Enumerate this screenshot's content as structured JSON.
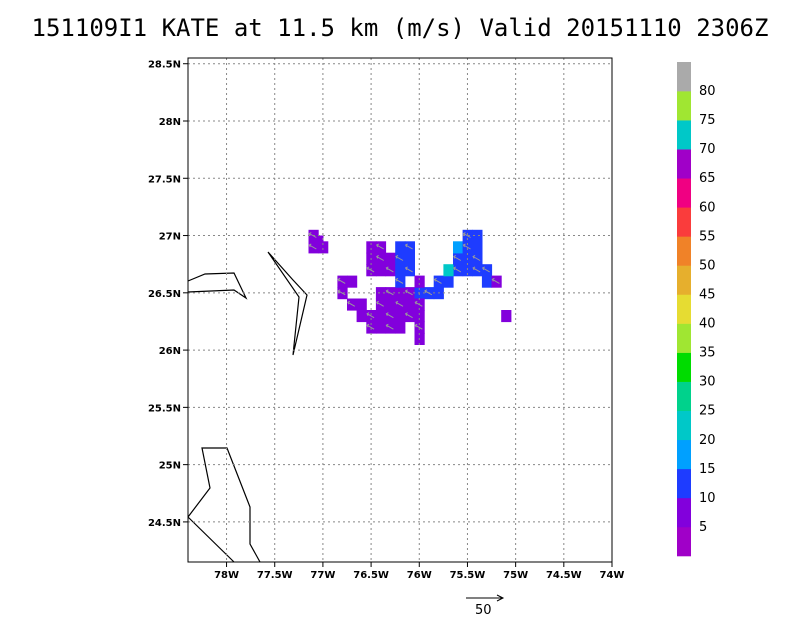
{
  "title": "151109I1 KATE at 11.5 km (m/s) Valid 20151110 2306Z",
  "chart_data": {
    "type": "heatmap",
    "x_unit": "deg lon (negative = W)",
    "y_unit": "deg lat",
    "xlim": [
      -78.4,
      -74.0
    ],
    "ylim": [
      24.15,
      28.55
    ],
    "grid": true,
    "x_ticks": [
      {
        "value": -78.0,
        "label": "78W"
      },
      {
        "value": -77.5,
        "label": "77.5W"
      },
      {
        "value": -77.0,
        "label": "77W"
      },
      {
        "value": -76.5,
        "label": "76.5W"
      },
      {
        "value": -76.0,
        "label": "76W"
      },
      {
        "value": -75.5,
        "label": "75.5W"
      },
      {
        "value": -75.0,
        "label": "75W"
      },
      {
        "value": -74.5,
        "label": "74.5W"
      },
      {
        "value": -74.0,
        "label": "74W"
      }
    ],
    "y_ticks": [
      {
        "value": 24.5,
        "label": "24.5N"
      },
      {
        "value": 25.0,
        "label": "25N"
      },
      {
        "value": 25.5,
        "label": "25.5N"
      },
      {
        "value": 26.0,
        "label": "26N"
      },
      {
        "value": 26.5,
        "label": "26.5N"
      },
      {
        "value": 27.0,
        "label": "27N"
      },
      {
        "value": 27.5,
        "label": "27.5N"
      },
      {
        "value": 28.0,
        "label": "28N"
      },
      {
        "value": 28.5,
        "label": "28.5N"
      }
    ],
    "colorbar": {
      "levels": [
        {
          "label": "",
          "color": "#a000c8"
        },
        {
          "label": "5",
          "color": "#8200dc"
        },
        {
          "label": "10",
          "color": "#1e3cff"
        },
        {
          "label": "15",
          "color": "#00a0ff"
        },
        {
          "label": "20",
          "color": "#00c8c8"
        },
        {
          "label": "25",
          "color": "#00d28c"
        },
        {
          "label": "30",
          "color": "#00dc00"
        },
        {
          "label": "35",
          "color": "#a0e632"
        },
        {
          "label": "40",
          "color": "#e6dc32"
        },
        {
          "label": "45",
          "color": "#e6af2d"
        },
        {
          "label": "50",
          "color": "#f08228"
        },
        {
          "label": "55",
          "color": "#fa3c3c"
        },
        {
          "label": "60",
          "color": "#f00082"
        },
        {
          "label": "65",
          "color": "#a000c8"
        },
        {
          "label": "70",
          "color": "#00c8c8"
        },
        {
          "label": "75",
          "color": "#a0e632"
        },
        {
          "label": "80",
          "color": "#aaaaaa"
        }
      ]
    },
    "cell_size_deg": 0.1,
    "cells": [
      {
        "lon": -77.1,
        "lat": 27.0,
        "v": 5
      },
      {
        "lon": -77.05,
        "lat": 26.95,
        "v": 5
      },
      {
        "lon": -77.1,
        "lat": 26.9,
        "v": 5
      },
      {
        "lon": -77.0,
        "lat": 26.9,
        "v": 5
      },
      {
        "lon": -76.8,
        "lat": 26.6,
        "v": 5
      },
      {
        "lon": -76.7,
        "lat": 26.6,
        "v": 5
      },
      {
        "lon": -76.8,
        "lat": 26.5,
        "v": 5
      },
      {
        "lon": -76.5,
        "lat": 26.9,
        "v": 5
      },
      {
        "lon": -76.4,
        "lat": 26.9,
        "v": 5
      },
      {
        "lon": -76.2,
        "lat": 26.9,
        "v": 10
      },
      {
        "lon": -76.1,
        "lat": 26.9,
        "v": 10
      },
      {
        "lon": -76.5,
        "lat": 26.8,
        "v": 5
      },
      {
        "lon": -76.4,
        "lat": 26.8,
        "v": 5
      },
      {
        "lon": -76.3,
        "lat": 26.8,
        "v": 5
      },
      {
        "lon": -76.2,
        "lat": 26.8,
        "v": 10
      },
      {
        "lon": -76.1,
        "lat": 26.8,
        "v": 10
      },
      {
        "lon": -76.5,
        "lat": 26.7,
        "v": 5
      },
      {
        "lon": -76.4,
        "lat": 26.7,
        "v": 5
      },
      {
        "lon": -76.3,
        "lat": 26.7,
        "v": 5
      },
      {
        "lon": -76.2,
        "lat": 26.7,
        "v": 10
      },
      {
        "lon": -76.1,
        "lat": 26.7,
        "v": 10
      },
      {
        "lon": -76.4,
        "lat": 26.5,
        "v": 5
      },
      {
        "lon": -76.3,
        "lat": 26.5,
        "v": 5
      },
      {
        "lon": -76.2,
        "lat": 26.5,
        "v": 5
      },
      {
        "lon": -76.1,
        "lat": 26.5,
        "v": 5
      },
      {
        "lon": -76.0,
        "lat": 26.5,
        "v": 10
      },
      {
        "lon": -75.9,
        "lat": 26.5,
        "v": 10
      },
      {
        "lon": -75.8,
        "lat": 26.5,
        "v": 10
      },
      {
        "lon": -76.2,
        "lat": 26.6,
        "v": 10
      },
      {
        "lon": -76.0,
        "lat": 26.6,
        "v": 5
      },
      {
        "lon": -75.8,
        "lat": 26.6,
        "v": 10
      },
      {
        "lon": -75.7,
        "lat": 26.6,
        "v": 10
      },
      {
        "lon": -76.7,
        "lat": 26.4,
        "v": 5
      },
      {
        "lon": -76.6,
        "lat": 26.4,
        "v": 5
      },
      {
        "lon": -76.4,
        "lat": 26.4,
        "v": 5
      },
      {
        "lon": -76.3,
        "lat": 26.4,
        "v": 5
      },
      {
        "lon": -76.2,
        "lat": 26.4,
        "v": 5
      },
      {
        "lon": -76.1,
        "lat": 26.4,
        "v": 5
      },
      {
        "lon": -76.0,
        "lat": 26.4,
        "v": 5
      },
      {
        "lon": -76.6,
        "lat": 26.3,
        "v": 5
      },
      {
        "lon": -76.5,
        "lat": 26.3,
        "v": 5
      },
      {
        "lon": -76.4,
        "lat": 26.3,
        "v": 5
      },
      {
        "lon": -76.3,
        "lat": 26.3,
        "v": 5
      },
      {
        "lon": -76.2,
        "lat": 26.3,
        "v": 5
      },
      {
        "lon": -76.1,
        "lat": 26.3,
        "v": 5
      },
      {
        "lon": -76.0,
        "lat": 26.3,
        "v": 5
      },
      {
        "lon": -76.5,
        "lat": 26.2,
        "v": 5
      },
      {
        "lon": -76.4,
        "lat": 26.2,
        "v": 5
      },
      {
        "lon": -76.3,
        "lat": 26.2,
        "v": 5
      },
      {
        "lon": -76.2,
        "lat": 26.2,
        "v": 5
      },
      {
        "lon": -76.0,
        "lat": 26.2,
        "v": 5
      },
      {
        "lon": -76.0,
        "lat": 26.1,
        "v": 5
      },
      {
        "lon": -75.6,
        "lat": 26.7,
        "v": 10
      },
      {
        "lon": -75.5,
        "lat": 26.7,
        "v": 10
      },
      {
        "lon": -75.4,
        "lat": 26.7,
        "v": 10
      },
      {
        "lon": -75.7,
        "lat": 26.7,
        "v": 20
      },
      {
        "lon": -75.6,
        "lat": 26.8,
        "v": 10
      },
      {
        "lon": -75.5,
        "lat": 26.8,
        "v": 10
      },
      {
        "lon": -75.4,
        "lat": 26.8,
        "v": 10
      },
      {
        "lon": -75.6,
        "lat": 26.9,
        "v": 15
      },
      {
        "lon": -75.5,
        "lat": 26.9,
        "v": 10
      },
      {
        "lon": -75.4,
        "lat": 26.9,
        "v": 10
      },
      {
        "lon": -75.5,
        "lat": 27.0,
        "v": 10
      },
      {
        "lon": -75.4,
        "lat": 27.0,
        "v": 10
      },
      {
        "lon": -75.3,
        "lat": 26.7,
        "v": 10
      },
      {
        "lon": -75.3,
        "lat": 26.6,
        "v": 10
      },
      {
        "lon": -75.2,
        "lat": 26.6,
        "v": 5
      },
      {
        "lon": -75.1,
        "lat": 26.3,
        "v": 5
      }
    ],
    "vector_reference": {
      "label": "50"
    }
  }
}
